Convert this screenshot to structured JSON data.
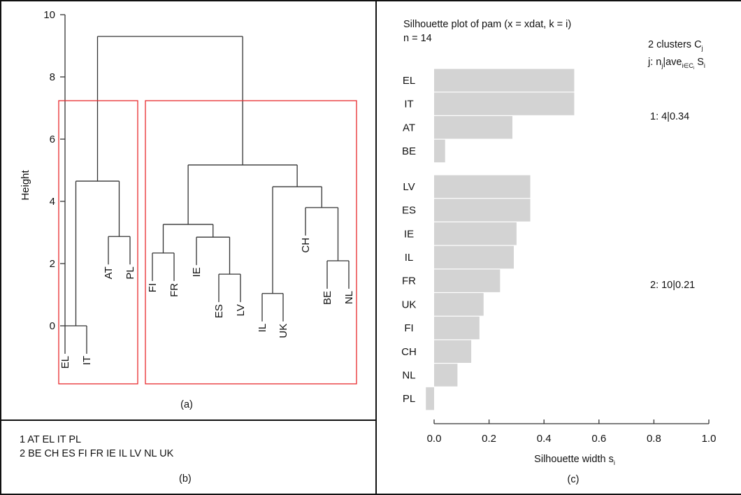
{
  "panels": {
    "a_label": "(a)",
    "b_label": "(b)",
    "c_label": "(c)"
  },
  "cluster_listing": [
    "1 AT EL IT PL",
    "2 BE CH ES FI FR IE IL LV NL UK"
  ],
  "chart_data": [
    {
      "type": "dendrogram",
      "ylabel": "Height",
      "ylim": [
        0,
        10
      ],
      "yticks": [
        "0",
        "2",
        "4",
        "6",
        "8",
        "10"
      ],
      "leaves": [
        "EL",
        "IT",
        "AT",
        "PL",
        "FI",
        "FR",
        "IE",
        "ES",
        "LV",
        "IL",
        "UK",
        "CH",
        "BE",
        "NL"
      ],
      "merges": [
        {
          "left": "EL",
          "right": "IT",
          "height": 0.0
        },
        {
          "left": "AT",
          "right": "PL",
          "height": 2.87
        },
        {
          "left": "EL+IT",
          "right": "AT+PL",
          "height": 4.65
        },
        {
          "left": "FI",
          "right": "FR",
          "height": 2.34
        },
        {
          "left": "ES",
          "right": "LV",
          "height": 1.66
        },
        {
          "left": "IE",
          "right": "ES+LV",
          "height": 2.85
        },
        {
          "left": "FI+FR",
          "right": "IE+ES+LV",
          "height": 3.26
        },
        {
          "left": "IL",
          "right": "UK",
          "height": 1.04
        },
        {
          "left": "BE",
          "right": "NL",
          "height": 2.09
        },
        {
          "left": "CH",
          "right": "BE+NL",
          "height": 3.8
        },
        {
          "left": "IL+UK",
          "right": "CH+BE+NL",
          "height": 4.47
        },
        {
          "left": "FI..LV",
          "right": "IL..NL",
          "height": 5.17
        },
        {
          "left": "cluster1",
          "right": "cluster2",
          "height": 9.3
        }
      ],
      "cluster_boxes": [
        [
          "EL",
          "IT",
          "AT",
          "PL"
        ],
        [
          "FI",
          "FR",
          "IE",
          "ES",
          "LV",
          "IL",
          "UK",
          "CH",
          "BE",
          "NL"
        ]
      ],
      "box_color": "#e8282d"
    },
    {
      "type": "bar",
      "orientation": "horizontal",
      "title": "Silhouette plot of pam (x = xdat, k = i)",
      "subtitle": "n = 14",
      "legend_title": "2 clusters C",
      "legend_title_sub": "j",
      "legend_header": {
        "a": "j: n",
        "a_sub": "j",
        "b": "|ave",
        "b_sub": "i∈C",
        "b_subsub": "i",
        "c": " S",
        "c_sub": "i"
      },
      "xlabel": "Silhouette width s",
      "xlabel_sub": "i",
      "xlim": [
        0,
        1
      ],
      "xticks": [
        "0.0",
        "0.2",
        "0.4",
        "0.6",
        "0.8",
        "1.0"
      ],
      "bar_color": "#d3d3d3",
      "clusters": [
        {
          "summary": "1: 4|0.34",
          "categories": [
            "EL",
            "IT",
            "AT",
            "BE"
          ],
          "values": [
            0.51,
            0.51,
            0.285,
            0.04
          ]
        },
        {
          "summary": "2: 10|0.21",
          "categories": [
            "LV",
            "ES",
            "IE",
            "IL",
            "FR",
            "UK",
            "FI",
            "CH",
            "NL",
            "PL"
          ],
          "values": [
            0.35,
            0.35,
            0.3,
            0.29,
            0.24,
            0.18,
            0.165,
            0.135,
            0.085,
            -0.03
          ]
        }
      ]
    }
  ]
}
